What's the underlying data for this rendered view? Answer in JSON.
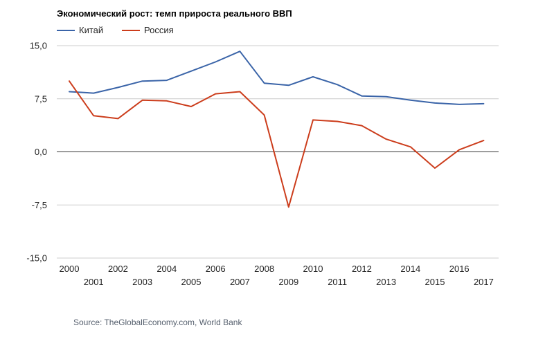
{
  "chart_data": {
    "type": "line",
    "title": "Экономический рост: темп прироста реального ВВП",
    "xlabel": "",
    "ylabel": "",
    "ylim": [
      -15,
      15
    ],
    "y_ticks": [
      "15,0",
      "7,5",
      "0,0",
      "-7,5",
      "-15,0"
    ],
    "y_tick_values": [
      15,
      7.5,
      0,
      -7.5,
      -15
    ],
    "x": [
      "2000",
      "2001",
      "2002",
      "2003",
      "2004",
      "2005",
      "2006",
      "2007",
      "2008",
      "2009",
      "2010",
      "2011",
      "2012",
      "2013",
      "2014",
      "2015",
      "2016",
      "2017"
    ],
    "series": [
      {
        "name": "Китай",
        "color": "#3a64a8",
        "values": [
          8.5,
          8.3,
          9.1,
          10.0,
          10.1,
          11.4,
          12.7,
          14.2,
          9.7,
          9.4,
          10.6,
          9.5,
          7.9,
          7.8,
          7.3,
          6.9,
          6.7,
          6.8
        ]
      },
      {
        "name": "Россия",
        "color": "#cc3d1c",
        "values": [
          10.0,
          5.1,
          4.7,
          7.3,
          7.2,
          6.4,
          8.2,
          8.5,
          5.2,
          -7.8,
          4.5,
          4.3,
          3.7,
          1.8,
          0.7,
          -2.3,
          0.3,
          1.6
        ]
      }
    ],
    "grid": true,
    "legend_position": "top-left"
  },
  "source_text": "Source: TheGlobalEconomy.com, World Bank"
}
